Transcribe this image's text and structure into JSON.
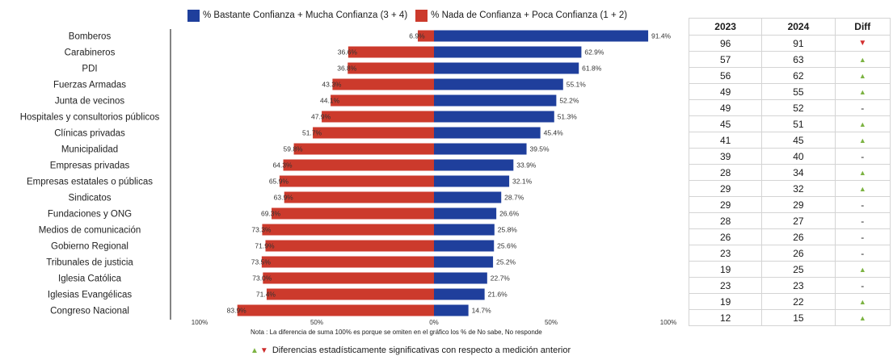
{
  "legend": {
    "blue_label": "% Bastante Confianza + Mucha Confianza (3 + 4)",
    "red_label": "% Nada de Confianza + Poca Confianza (1 + 2)",
    "blue_color": "#1f3f9c",
    "red_color": "#cc3a2c"
  },
  "chart_data": {
    "type": "bar",
    "orientation": "horizontal-diverging",
    "categories": [
      "Bomberos",
      "Carabineros",
      "PDI",
      "Fuerzas Armadas",
      "Junta de vecinos",
      "Hospitales y consultorios públicos",
      "Clínicas privadas",
      "Municipalidad",
      "Empresas privadas",
      "Empresas estatales o públicas",
      "Sindicatos",
      "Fundaciones y ONG",
      "Medios de comunicación",
      "Gobierno Regional",
      "Tribunales de justicia",
      "Iglesia Católica",
      "Iglesias Evangélicas",
      "Congreso Nacional"
    ],
    "series": [
      {
        "name": "% Bastante Confianza + Mucha Confianza (3 + 4)",
        "side": "right",
        "values": [
          91.4,
          62.9,
          61.8,
          55.1,
          52.2,
          51.3,
          45.4,
          39.5,
          33.9,
          32.1,
          28.7,
          26.6,
          25.8,
          25.6,
          25.2,
          22.7,
          21.6,
          14.7
        ]
      },
      {
        "name": "% Nada de Confianza + Poca Confianza (1 + 2)",
        "side": "left",
        "values": [
          6.9,
          36.6,
          36.8,
          43.3,
          44.1,
          47.9,
          51.7,
          59.8,
          64.3,
          65.9,
          63.9,
          69.3,
          73.3,
          71.9,
          73.5,
          73.0,
          71.4,
          83.9
        ]
      }
    ],
    "value_labels": {
      "right": [
        "91.4%",
        "62.9%",
        "61.8%",
        "55.1%",
        "52.2%",
        "51.3%",
        "45.4%",
        "39.5%",
        "33.9%",
        "32.1%",
        "28.7%",
        "26.6%",
        "25.8%",
        "25.6%",
        "25.2%",
        "22.7%",
        "21.6%",
        "14.7%"
      ],
      "left": [
        "6.9%",
        "36.6%",
        "36.8%",
        "43.3%",
        "44.1%",
        "47.9%",
        "51.7%",
        "59.8%",
        "64.3%",
        "65.9%",
        "63.9%",
        "69.3%",
        "73.3%",
        "71.9%",
        "73.5%",
        "73.0%",
        "71.4%",
        "83.9%"
      ]
    },
    "xlim": [
      -100,
      100
    ],
    "x_ticks": [
      -100,
      -50,
      0,
      50,
      100
    ],
    "x_tick_labels": [
      "100%",
      "50%",
      "0%",
      "50%",
      "100%"
    ],
    "grid": false,
    "legend_position": "top"
  },
  "table": {
    "headers": [
      "2023",
      "2024",
      "Diff"
    ],
    "rows": [
      {
        "y2023": "96",
        "y2024": "91",
        "diff": "▼"
      },
      {
        "y2023": "57",
        "y2024": "63",
        "diff": "▲"
      },
      {
        "y2023": "56",
        "y2024": "62",
        "diff": "▲"
      },
      {
        "y2023": "49",
        "y2024": "55",
        "diff": "▲"
      },
      {
        "y2023": "49",
        "y2024": "52",
        "diff": "-"
      },
      {
        "y2023": "45",
        "y2024": "51",
        "diff": "▲"
      },
      {
        "y2023": "41",
        "y2024": "45",
        "diff": "▲"
      },
      {
        "y2023": "39",
        "y2024": "40",
        "diff": "-"
      },
      {
        "y2023": "28",
        "y2024": "34",
        "diff": "▲"
      },
      {
        "y2023": "29",
        "y2024": "32",
        "diff": "▲"
      },
      {
        "y2023": "29",
        "y2024": "29",
        "diff": "-"
      },
      {
        "y2023": "28",
        "y2024": "27",
        "diff": "-"
      },
      {
        "y2023": "26",
        "y2024": "26",
        "diff": "-"
      },
      {
        "y2023": "23",
        "y2024": "26",
        "diff": "-"
      },
      {
        "y2023": "19",
        "y2024": "25",
        "diff": "▲"
      },
      {
        "y2023": "23",
        "y2024": "23",
        "diff": "-"
      },
      {
        "y2023": "19",
        "y2024": "22",
        "diff": "▲"
      },
      {
        "y2023": "12",
        "y2024": "15",
        "diff": "▲"
      }
    ]
  },
  "note": "Nota : La diferencia de suma 100% es porque se omiten en el gráfico los % de No sabe, No responde",
  "significance": {
    "up_symbol": "▲",
    "down_symbol": "▼",
    "text": "Diferencias estadísticamente significativas con respecto a medición anterior"
  }
}
